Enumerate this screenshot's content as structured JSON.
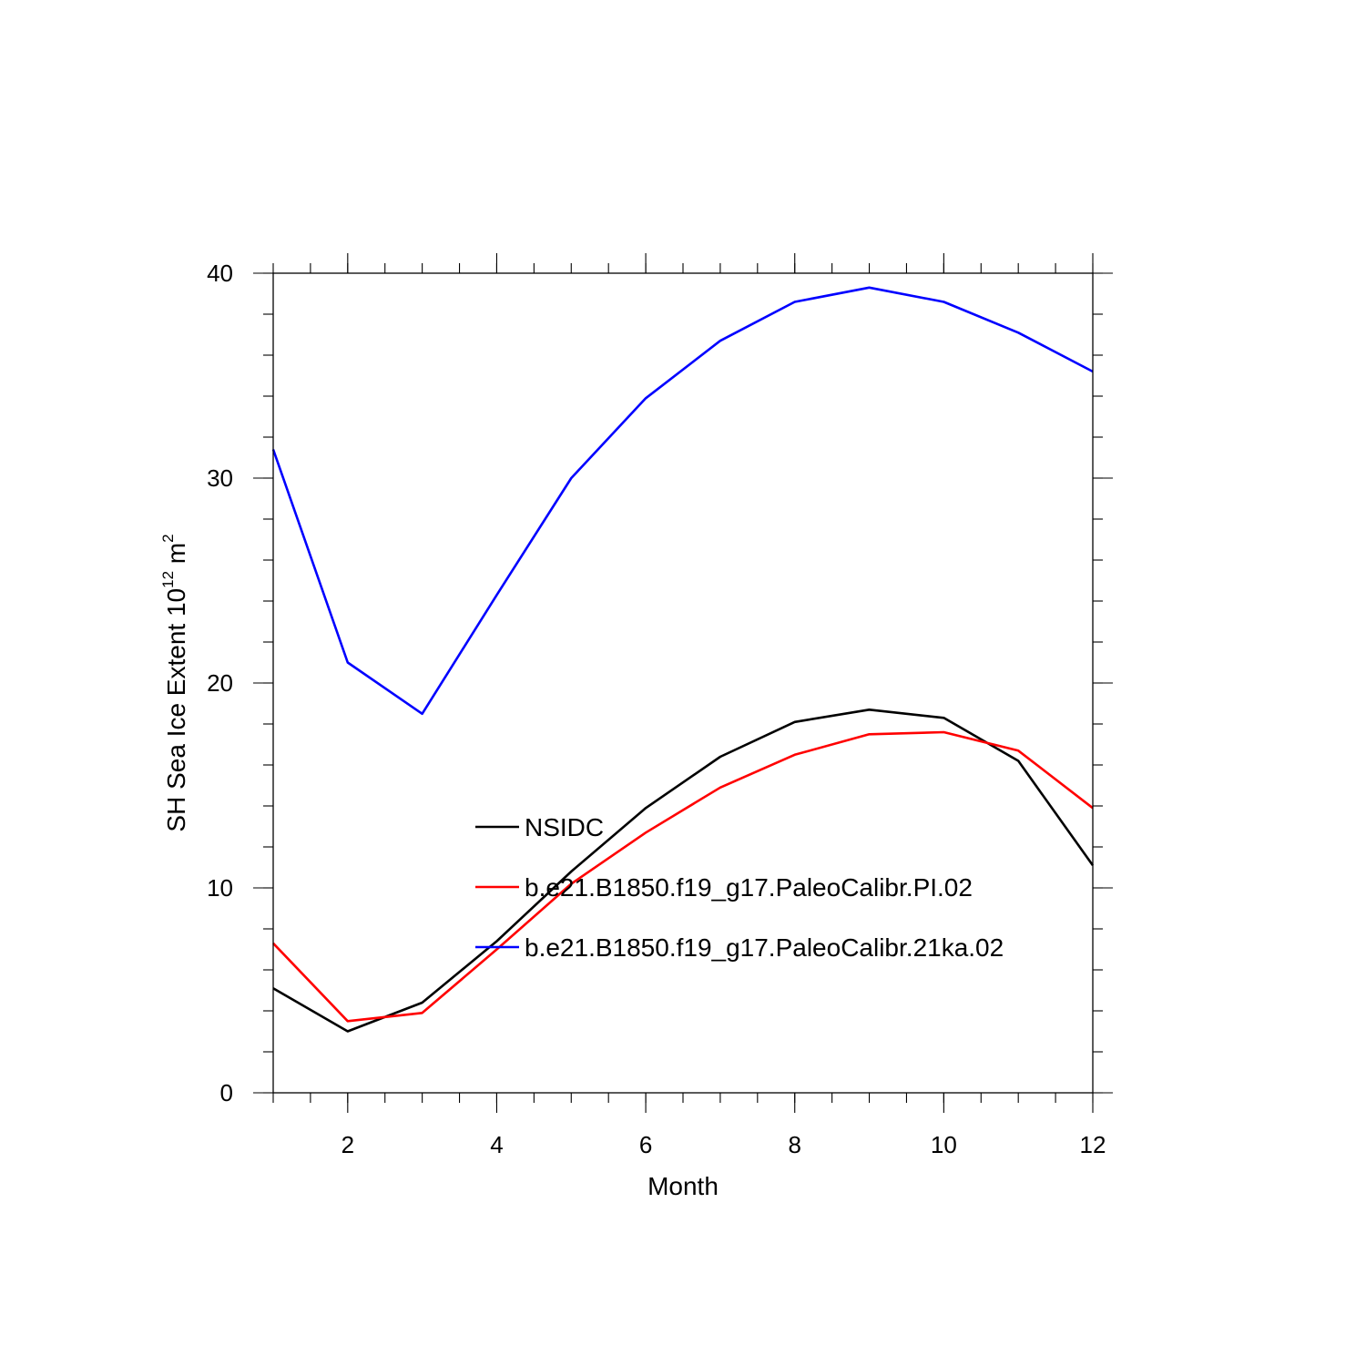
{
  "chart_data": {
    "type": "line",
    "xlabel": "Month",
    "ylabel": {
      "text": "SH Sea Ice Extent 10",
      "superscript": "12",
      "unit": " m",
      "unit_superscript": "2"
    },
    "xlim": [
      1,
      12
    ],
    "ylim": [
      0,
      40
    ],
    "x_ticks": [
      2,
      4,
      6,
      8,
      10,
      12
    ],
    "x_minor_step": 0.5,
    "y_ticks": [
      0,
      10,
      20,
      30,
      40
    ],
    "y_minor_step": 2,
    "grid": false,
    "legend_position": "inside-center",
    "x": [
      1,
      2,
      3,
      4,
      5,
      6,
      7,
      8,
      9,
      10,
      11,
      12
    ],
    "series": [
      {
        "name": "NSIDC",
        "color": "#000000",
        "values": [
          5.1,
          3.0,
          4.4,
          7.4,
          10.8,
          13.9,
          16.4,
          18.1,
          18.7,
          18.3,
          16.2,
          11.1
        ]
      },
      {
        "name": "b.e21.B1850.f19_g17.PaleoCalibr.PI.02",
        "color": "#ff0000",
        "values": [
          7.3,
          3.5,
          3.9,
          7.0,
          10.2,
          12.7,
          14.9,
          16.5,
          17.5,
          17.6,
          16.7,
          13.9
        ]
      },
      {
        "name": "b.e21.B1850.f19_g17.PaleoCalibr.21ka.02",
        "color": "#0000ff",
        "values": [
          31.4,
          21.0,
          18.5,
          24.3,
          30.0,
          33.9,
          36.7,
          38.6,
          39.3,
          38.6,
          37.1,
          35.2
        ]
      }
    ]
  }
}
